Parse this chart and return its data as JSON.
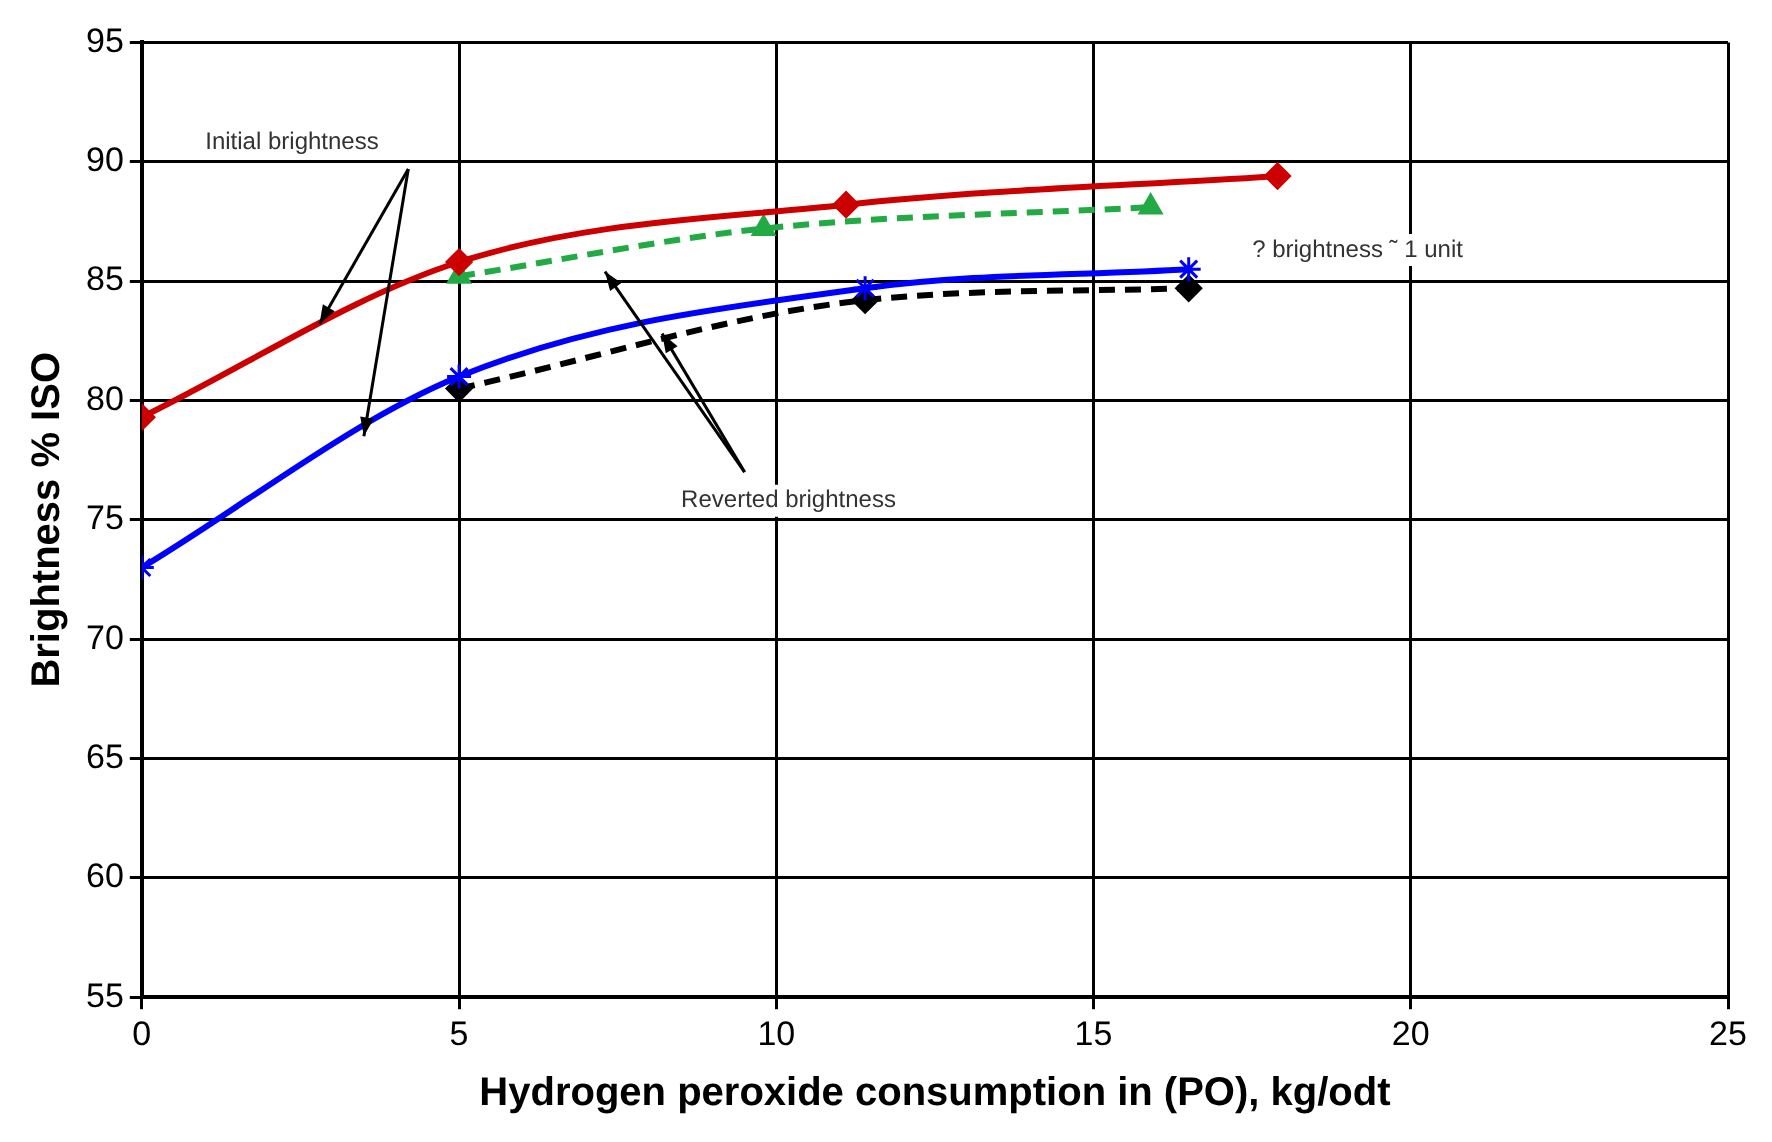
{
  "chart_data": {
    "type": "line",
    "xlabel": "Hydrogen peroxide consumption in (PO), kg/odt",
    "ylabel": "Brightness % ISO",
    "xlim": [
      0,
      25
    ],
    "xticks": [
      0,
      5,
      10,
      15,
      20,
      25
    ],
    "ylim": [
      55,
      95
    ],
    "yticks": [
      55,
      60,
      65,
      70,
      75,
      80,
      85,
      90,
      95
    ],
    "grid": true,
    "legend": false,
    "series": [
      {
        "color": "#cc0000",
        "x": [
          0,
          5,
          11.1,
          17.9
        ],
        "values": [
          79.3,
          85.8,
          88.2,
          89.4
        ],
        "marker": "diamond",
        "line_style": "solid"
      },
      {
        "color": "#22aa44",
        "x": [
          5,
          9.8,
          15.9
        ],
        "values": [
          85.2,
          87.2,
          88.1
        ],
        "marker": "triangle",
        "line_style": "dashed"
      },
      {
        "color": "#0000ff",
        "x": [
          0,
          5,
          11.4,
          16.5
        ],
        "values": [
          73,
          81,
          84.7,
          85.5
        ],
        "marker": "cross",
        "line_style": "solid"
      },
      {
        "color": "#000000",
        "x": [
          5,
          11.4,
          16.5
        ],
        "values": [
          80.5,
          84.2,
          84.7
        ],
        "marker": "diamond",
        "line_style": "dashed"
      }
    ],
    "annotations": [
      "Initial brightness",
      {
        "text": "Reverted brightness",
        "x": 8.2,
        "y": 82.8
      },
      "? brightness ˜ 1 unit"
    ]
  }
}
